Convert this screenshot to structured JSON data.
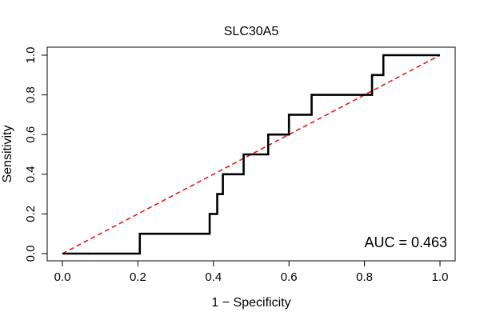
{
  "chart_data": {
    "type": "line",
    "title": "SLC30A5",
    "xlabel": "1 − Specificity",
    "ylabel": "Sensitivity",
    "xlim": [
      0,
      1
    ],
    "ylim": [
      0,
      1
    ],
    "x_ticks": [
      "0.0",
      "0.2",
      "0.4",
      "0.6",
      "0.8",
      "1.0"
    ],
    "y_ticks": [
      "0.0",
      "0.2",
      "0.4",
      "0.6",
      "0.8",
      "1.0"
    ],
    "grid": false,
    "series": [
      {
        "name": "ROC",
        "color": "#000000",
        "style": "solid",
        "x": [
          0,
          0.205,
          0.205,
          0.39,
          0.39,
          0.41,
          0.41,
          0.425,
          0.425,
          0.48,
          0.48,
          0.545,
          0.545,
          0.6,
          0.6,
          0.66,
          0.66,
          0.82,
          0.82,
          0.85,
          0.85,
          1.0
        ],
        "y": [
          0,
          0,
          0.1,
          0.1,
          0.2,
          0.2,
          0.3,
          0.3,
          0.4,
          0.4,
          0.5,
          0.5,
          0.6,
          0.6,
          0.7,
          0.7,
          0.8,
          0.8,
          0.9,
          0.9,
          1.0,
          1.0
        ]
      },
      {
        "name": "chance",
        "color": "#e41a1c",
        "style": "dashed",
        "x": [
          0,
          1
        ],
        "y": [
          0,
          1
        ]
      }
    ],
    "annotation": "AUC = 0.463"
  }
}
